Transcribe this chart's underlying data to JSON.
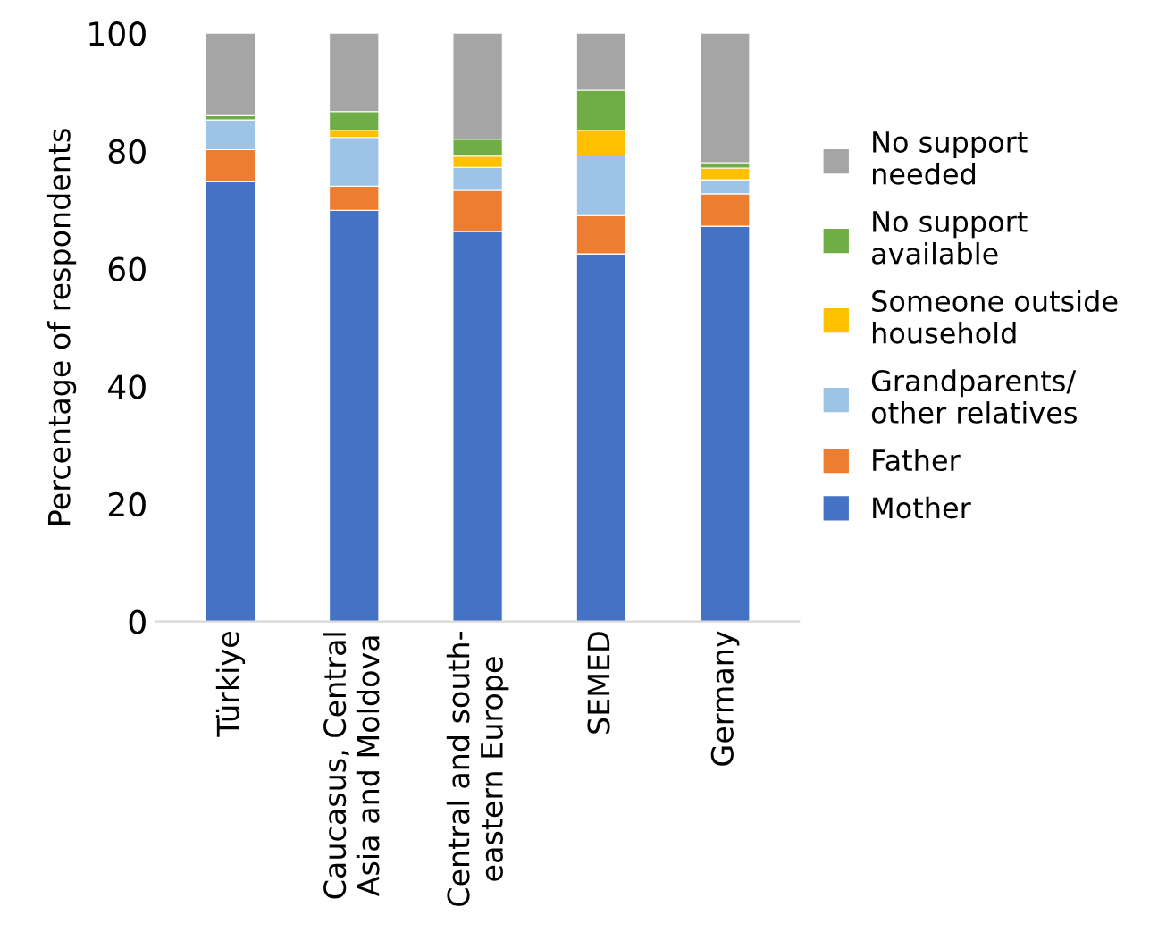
{
  "chart_data": {
    "type": "bar",
    "stacked": true,
    "ylabel": "Percentage of respondents",
    "categories": [
      "Türkiye",
      "Caucasus, Central\nAsia and Moldova",
      "Central and south-\neastern Europe",
      "SEMED",
      "Germany"
    ],
    "series": [
      {
        "name": "Mother",
        "color": "#4472c4",
        "values": [
          74.8,
          69.9,
          66.3,
          62.5,
          67.2
        ]
      },
      {
        "name": "Father",
        "color": "#ed7d31",
        "values": [
          5.4,
          4.1,
          7.0,
          6.5,
          5.5
        ]
      },
      {
        "name": "Grandparents/\nother relatives",
        "color": "#9dc3e6",
        "values": [
          5.1,
          8.3,
          3.9,
          10.3,
          2.4
        ]
      },
      {
        "name": "Someone outside\nhousehold",
        "color": "#ffc000",
        "values": [
          0,
          1.2,
          1.9,
          4.2,
          2.0
        ]
      },
      {
        "name": "No support\navailable",
        "color": "#70ad47",
        "values": [
          0.7,
          3.2,
          2.9,
          6.8,
          0.9
        ]
      },
      {
        "name": "No support\nneeded",
        "color": "#a5a5a5",
        "values": [
          14,
          13.3,
          18,
          9.7,
          22
        ]
      }
    ],
    "ylim": [
      0,
      100
    ],
    "yticks": [
      0,
      20,
      40,
      60,
      80,
      100
    ],
    "grid": false,
    "legend": "right"
  }
}
